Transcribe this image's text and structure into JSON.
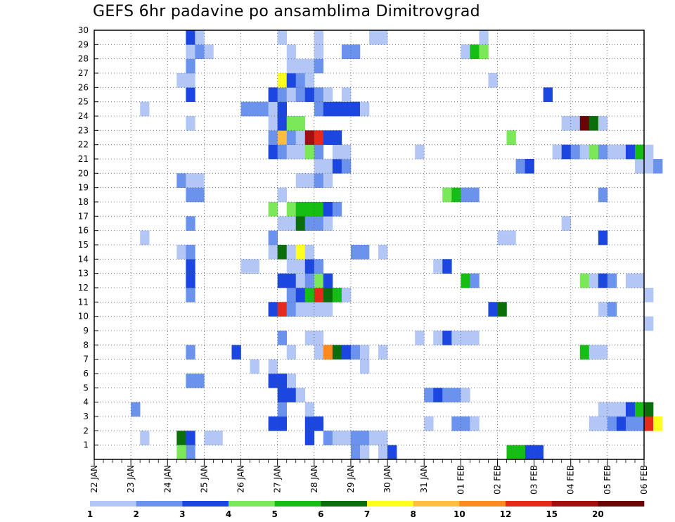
{
  "chart_data": {
    "type": "heatmap",
    "title": "GEFS 6hr padavine po ansamblima Dimitrovgrad",
    "x_tick_labels": [
      "22 JAN",
      "23 JAN",
      "24 JAN",
      "25 JAN",
      "26 JAN",
      "27 JAN",
      "28 JAN",
      "29 JAN",
      "30 JAN",
      "31 JAN",
      "01 FEB",
      "02 FEB",
      "03 FEB",
      "04 FEB",
      "05 FEB",
      "06 FEB"
    ],
    "y_tick_labels": [
      "1",
      "2",
      "3",
      "4",
      "5",
      "6",
      "7",
      "8",
      "9",
      "10",
      "11",
      "12",
      "13",
      "14",
      "15",
      "16",
      "17",
      "18",
      "19",
      "20",
      "21",
      "22",
      "23",
      "24",
      "25",
      "26",
      "27",
      "28",
      "29",
      "30"
    ],
    "y_range": [
      0,
      30
    ],
    "x_range_days": [
      0,
      15
    ],
    "grid": true,
    "colorbar": {
      "labels": [
        "1",
        "2",
        "3",
        "4",
        "5",
        "6",
        "7",
        "8",
        "10",
        "12",
        "15",
        "20"
      ],
      "colors": [
        "#b3c7f7",
        "#6b93ee",
        "#1c46e0",
        "#7be85a",
        "#15bd15",
        "#0a6e0a",
        "#ffff1c",
        "#ffbe3d",
        "#fc8a1e",
        "#e52a1a",
        "#a30e0e",
        "#6b0606"
      ]
    },
    "cells_note": "columns: [day offset, member, colorbar class index 0-11]",
    "cells": [
      [
        2.25,
        1,
        5
      ],
      [
        2.5,
        1,
        2
      ],
      [
        3.0,
        1,
        0
      ],
      [
        3.25,
        1,
        0
      ],
      [
        2.5,
        0,
        1
      ],
      [
        2.25,
        0,
        3
      ],
      [
        4.75,
        2,
        2
      ],
      [
        5.0,
        2,
        2
      ],
      [
        5.75,
        1,
        2
      ],
      [
        5.75,
        2,
        2
      ],
      [
        6.0,
        2,
        2
      ],
      [
        6.25,
        1,
        1
      ],
      [
        6.5,
        1,
        0
      ],
      [
        6.75,
        1,
        0
      ],
      [
        7.0,
        1,
        1
      ],
      [
        7.25,
        1,
        1
      ],
      [
        7.5,
        1,
        0
      ],
      [
        7.75,
        1,
        0
      ],
      [
        7.0,
        0,
        1
      ],
      [
        7.25,
        0,
        0
      ],
      [
        9.0,
        2,
        0
      ],
      [
        9.75,
        2,
        1
      ],
      [
        10.0,
        2,
        1
      ],
      [
        10.25,
        2,
        0
      ],
      [
        13.5,
        2,
        0
      ],
      [
        13.75,
        2,
        0
      ],
      [
        14.0,
        2,
        1
      ],
      [
        14.25,
        2,
        2
      ],
      [
        14.5,
        2,
        1
      ],
      [
        14.75,
        2,
        1
      ],
      [
        15.0,
        2,
        9
      ],
      [
        15.25,
        2,
        6
      ],
      [
        1.0,
        3,
        1
      ],
      [
        1.25,
        1,
        0
      ],
      [
        5.0,
        3,
        1
      ],
      [
        5.0,
        4,
        2
      ],
      [
        5.25,
        4,
        2
      ],
      [
        5.5,
        4,
        0
      ],
      [
        5.75,
        3,
        0
      ],
      [
        5.25,
        5,
        0
      ],
      [
        9.0,
        4,
        1
      ],
      [
        9.25,
        4,
        2
      ],
      [
        9.5,
        4,
        1
      ],
      [
        9.75,
        4,
        1
      ],
      [
        10.0,
        4,
        0
      ],
      [
        11.25,
        0,
        4
      ],
      [
        11.75,
        0,
        2
      ],
      [
        13.75,
        3,
        0
      ],
      [
        14.0,
        3,
        0
      ],
      [
        14.25,
        3,
        0
      ],
      [
        14.5,
        3,
        2
      ],
      [
        14.75,
        3,
        4
      ],
      [
        15.0,
        3,
        5
      ],
      [
        2.5,
        5,
        1
      ],
      [
        2.75,
        5,
        1
      ],
      [
        4.75,
        5,
        2
      ],
      [
        5.0,
        5,
        2
      ],
      [
        4.75,
        6,
        0
      ],
      [
        4.25,
        6,
        0
      ],
      [
        3.75,
        7,
        2
      ],
      [
        2.5,
        7,
        1
      ],
      [
        5.25,
        7,
        0
      ],
      [
        6.0,
        7,
        0
      ],
      [
        6.25,
        7,
        8
      ],
      [
        6.5,
        7,
        5
      ],
      [
        6.75,
        7,
        2
      ],
      [
        7.0,
        7,
        1
      ],
      [
        7.25,
        7,
        0
      ],
      [
        7.75,
        7,
        0
      ],
      [
        13.25,
        7,
        4
      ],
      [
        13.5,
        7,
        0
      ],
      [
        13.75,
        7,
        0
      ],
      [
        5.0,
        8,
        1
      ],
      [
        5.75,
        8,
        0
      ],
      [
        6.0,
        8,
        0
      ],
      [
        8.75,
        8,
        0
      ],
      [
        9.25,
        8,
        0
      ],
      [
        9.5,
        8,
        2
      ],
      [
        9.75,
        8,
        0
      ],
      [
        10.0,
        8,
        0
      ],
      [
        10.25,
        8,
        0
      ],
      [
        7.25,
        6,
        0
      ],
      [
        15.0,
        9,
        0
      ],
      [
        4.75,
        10,
        2
      ],
      [
        5.0,
        10,
        9
      ],
      [
        5.25,
        10,
        1
      ],
      [
        5.5,
        10,
        0
      ],
      [
        5.75,
        10,
        0
      ],
      [
        6.0,
        10,
        0
      ],
      [
        6.25,
        10,
        0
      ],
      [
        10.75,
        10,
        2
      ],
      [
        11.0,
        10,
        5
      ],
      [
        13.75,
        10,
        0
      ],
      [
        14.0,
        10,
        1
      ],
      [
        2.5,
        11,
        1
      ],
      [
        5.25,
        11,
        1
      ],
      [
        5.5,
        11,
        2
      ],
      [
        5.75,
        11,
        4
      ],
      [
        6.0,
        11,
        9
      ],
      [
        6.25,
        11,
        5
      ],
      [
        6.5,
        11,
        4
      ],
      [
        6.75,
        11,
        0
      ],
      [
        15.0,
        11,
        0
      ],
      [
        2.5,
        12,
        2
      ],
      [
        5.0,
        12,
        2
      ],
      [
        5.25,
        12,
        2
      ],
      [
        5.5,
        12,
        0
      ],
      [
        5.75,
        12,
        1
      ],
      [
        6.0,
        12,
        3
      ],
      [
        6.25,
        12,
        2
      ],
      [
        10.0,
        12,
        4
      ],
      [
        10.25,
        12,
        1
      ],
      [
        13.25,
        12,
        3
      ],
      [
        13.5,
        12,
        0
      ],
      [
        13.75,
        12,
        2
      ],
      [
        14.0,
        12,
        1
      ],
      [
        14.5,
        12,
        0
      ],
      [
        14.75,
        12,
        0
      ],
      [
        2.5,
        13,
        2
      ],
      [
        4.0,
        13,
        0
      ],
      [
        4.25,
        13,
        0
      ],
      [
        5.25,
        13,
        0
      ],
      [
        5.5,
        13,
        0
      ],
      [
        5.75,
        13,
        2
      ],
      [
        6.0,
        13,
        1
      ],
      [
        9.25,
        13,
        0
      ],
      [
        9.5,
        13,
        2
      ],
      [
        2.25,
        14,
        0
      ],
      [
        2.5,
        14,
        1
      ],
      [
        4.75,
        14,
        0
      ],
      [
        5.0,
        14,
        5
      ],
      [
        5.25,
        14,
        0
      ],
      [
        5.5,
        14,
        6
      ],
      [
        5.75,
        14,
        0
      ],
      [
        7.0,
        14,
        1
      ],
      [
        7.25,
        14,
        1
      ],
      [
        7.75,
        14,
        0
      ],
      [
        1.25,
        15,
        0
      ],
      [
        4.75,
        15,
        1
      ],
      [
        11.0,
        15,
        0
      ],
      [
        11.25,
        15,
        0
      ],
      [
        13.75,
        15,
        2
      ],
      [
        2.5,
        16,
        1
      ],
      [
        5.0,
        16,
        0
      ],
      [
        5.25,
        16,
        0
      ],
      [
        5.5,
        16,
        5
      ],
      [
        5.75,
        16,
        1
      ],
      [
        6.0,
        16,
        1
      ],
      [
        6.25,
        16,
        0
      ],
      [
        12.75,
        16,
        0
      ],
      [
        4.75,
        17,
        3
      ],
      [
        5.25,
        17,
        3
      ],
      [
        5.5,
        17,
        4
      ],
      [
        5.75,
        17,
        4
      ],
      [
        6.0,
        17,
        4
      ],
      [
        6.25,
        17,
        2
      ],
      [
        6.5,
        17,
        1
      ],
      [
        2.5,
        18,
        1
      ],
      [
        2.75,
        18,
        1
      ],
      [
        5.0,
        18,
        0
      ],
      [
        9.5,
        18,
        3
      ],
      [
        9.75,
        18,
        4
      ],
      [
        10.0,
        18,
        1
      ],
      [
        10.25,
        18,
        1
      ],
      [
        13.75,
        18,
        1
      ],
      [
        2.25,
        19,
        1
      ],
      [
        2.5,
        19,
        0
      ],
      [
        2.75,
        19,
        0
      ],
      [
        5.5,
        19,
        0
      ],
      [
        5.75,
        19,
        0
      ],
      [
        6.0,
        19,
        1
      ],
      [
        6.25,
        19,
        0
      ],
      [
        6.0,
        20,
        0
      ],
      [
        6.25,
        20,
        0
      ],
      [
        6.5,
        20,
        2
      ],
      [
        6.75,
        20,
        1
      ],
      [
        11.5,
        20,
        1
      ],
      [
        11.75,
        20,
        2
      ],
      [
        14.75,
        20,
        0
      ],
      [
        15.0,
        20,
        0
      ],
      [
        15.25,
        20,
        1
      ],
      [
        4.75,
        21,
        2
      ],
      [
        5.0,
        21,
        1
      ],
      [
        5.25,
        21,
        0
      ],
      [
        5.5,
        21,
        0
      ],
      [
        5.75,
        21,
        3
      ],
      [
        6.0,
        21,
        1
      ],
      [
        6.5,
        21,
        0
      ],
      [
        6.75,
        21,
        0
      ],
      [
        8.75,
        21,
        0
      ],
      [
        12.5,
        21,
        0
      ],
      [
        12.75,
        21,
        2
      ],
      [
        13.0,
        21,
        1
      ],
      [
        13.25,
        21,
        0
      ],
      [
        13.5,
        21,
        3
      ],
      [
        13.75,
        21,
        1
      ],
      [
        14.0,
        21,
        0
      ],
      [
        14.25,
        21,
        0
      ],
      [
        14.5,
        21,
        2
      ],
      [
        14.75,
        21,
        4
      ],
      [
        15.0,
        21,
        0
      ],
      [
        4.75,
        22,
        1
      ],
      [
        5.0,
        22,
        7
      ],
      [
        5.25,
        22,
        1
      ],
      [
        5.5,
        22,
        0
      ],
      [
        5.75,
        22,
        10
      ],
      [
        6.0,
        22,
        9
      ],
      [
        6.25,
        22,
        2
      ],
      [
        6.5,
        22,
        2
      ],
      [
        11.25,
        22,
        3
      ],
      [
        2.5,
        23,
        0
      ],
      [
        4.75,
        23,
        0
      ],
      [
        5.0,
        23,
        2
      ],
      [
        5.25,
        23,
        3
      ],
      [
        5.5,
        23,
        3
      ],
      [
        12.75,
        23,
        0
      ],
      [
        13.0,
        23,
        0
      ],
      [
        13.25,
        23,
        11
      ],
      [
        13.5,
        23,
        5
      ],
      [
        13.75,
        23,
        0
      ],
      [
        1.25,
        24,
        0
      ],
      [
        4.0,
        24,
        1
      ],
      [
        4.25,
        24,
        1
      ],
      [
        4.5,
        24,
        1
      ],
      [
        4.75,
        24,
        0
      ],
      [
        5.0,
        24,
        2
      ],
      [
        6.0,
        24,
        1
      ],
      [
        6.25,
        24,
        2
      ],
      [
        6.5,
        24,
        2
      ],
      [
        6.75,
        24,
        2
      ],
      [
        7.0,
        24,
        2
      ],
      [
        7.25,
        24,
        0
      ],
      [
        2.5,
        25,
        2
      ],
      [
        4.75,
        25,
        2
      ],
      [
        5.0,
        25,
        1
      ],
      [
        5.25,
        25,
        0
      ],
      [
        5.5,
        25,
        1
      ],
      [
        5.75,
        25,
        2
      ],
      [
        6.0,
        25,
        1
      ],
      [
        6.25,
        25,
        0
      ],
      [
        6.75,
        25,
        0
      ],
      [
        12.25,
        25,
        2
      ],
      [
        2.25,
        26,
        0
      ],
      [
        2.5,
        26,
        0
      ],
      [
        5.0,
        26,
        6
      ],
      [
        5.25,
        26,
        2
      ],
      [
        5.5,
        26,
        1
      ],
      [
        5.75,
        26,
        0
      ],
      [
        10.75,
        26,
        0
      ],
      [
        2.5,
        27,
        1
      ],
      [
        5.25,
        27,
        0
      ],
      [
        5.5,
        27,
        0
      ],
      [
        5.75,
        27,
        0
      ],
      [
        6.0,
        27,
        1
      ],
      [
        2.5,
        28,
        0
      ],
      [
        2.75,
        28,
        1
      ],
      [
        3.0,
        28,
        0
      ],
      [
        5.25,
        28,
        0
      ],
      [
        6.0,
        28,
        0
      ],
      [
        6.75,
        28,
        1
      ],
      [
        7.0,
        28,
        1
      ],
      [
        10.0,
        28,
        0
      ],
      [
        10.25,
        28,
        4
      ],
      [
        10.5,
        28,
        3
      ],
      [
        2.5,
        29,
        2
      ],
      [
        2.75,
        29,
        0
      ],
      [
        5.0,
        29,
        0
      ],
      [
        6.0,
        29,
        0
      ],
      [
        7.5,
        29,
        0
      ],
      [
        7.75,
        29,
        0
      ],
      [
        10.5,
        29,
        0
      ],
      [
        7.75,
        0,
        0
      ],
      [
        8.0,
        0,
        2
      ],
      [
        11.5,
        0,
        4
      ],
      [
        12.0,
        0,
        2
      ]
    ]
  }
}
